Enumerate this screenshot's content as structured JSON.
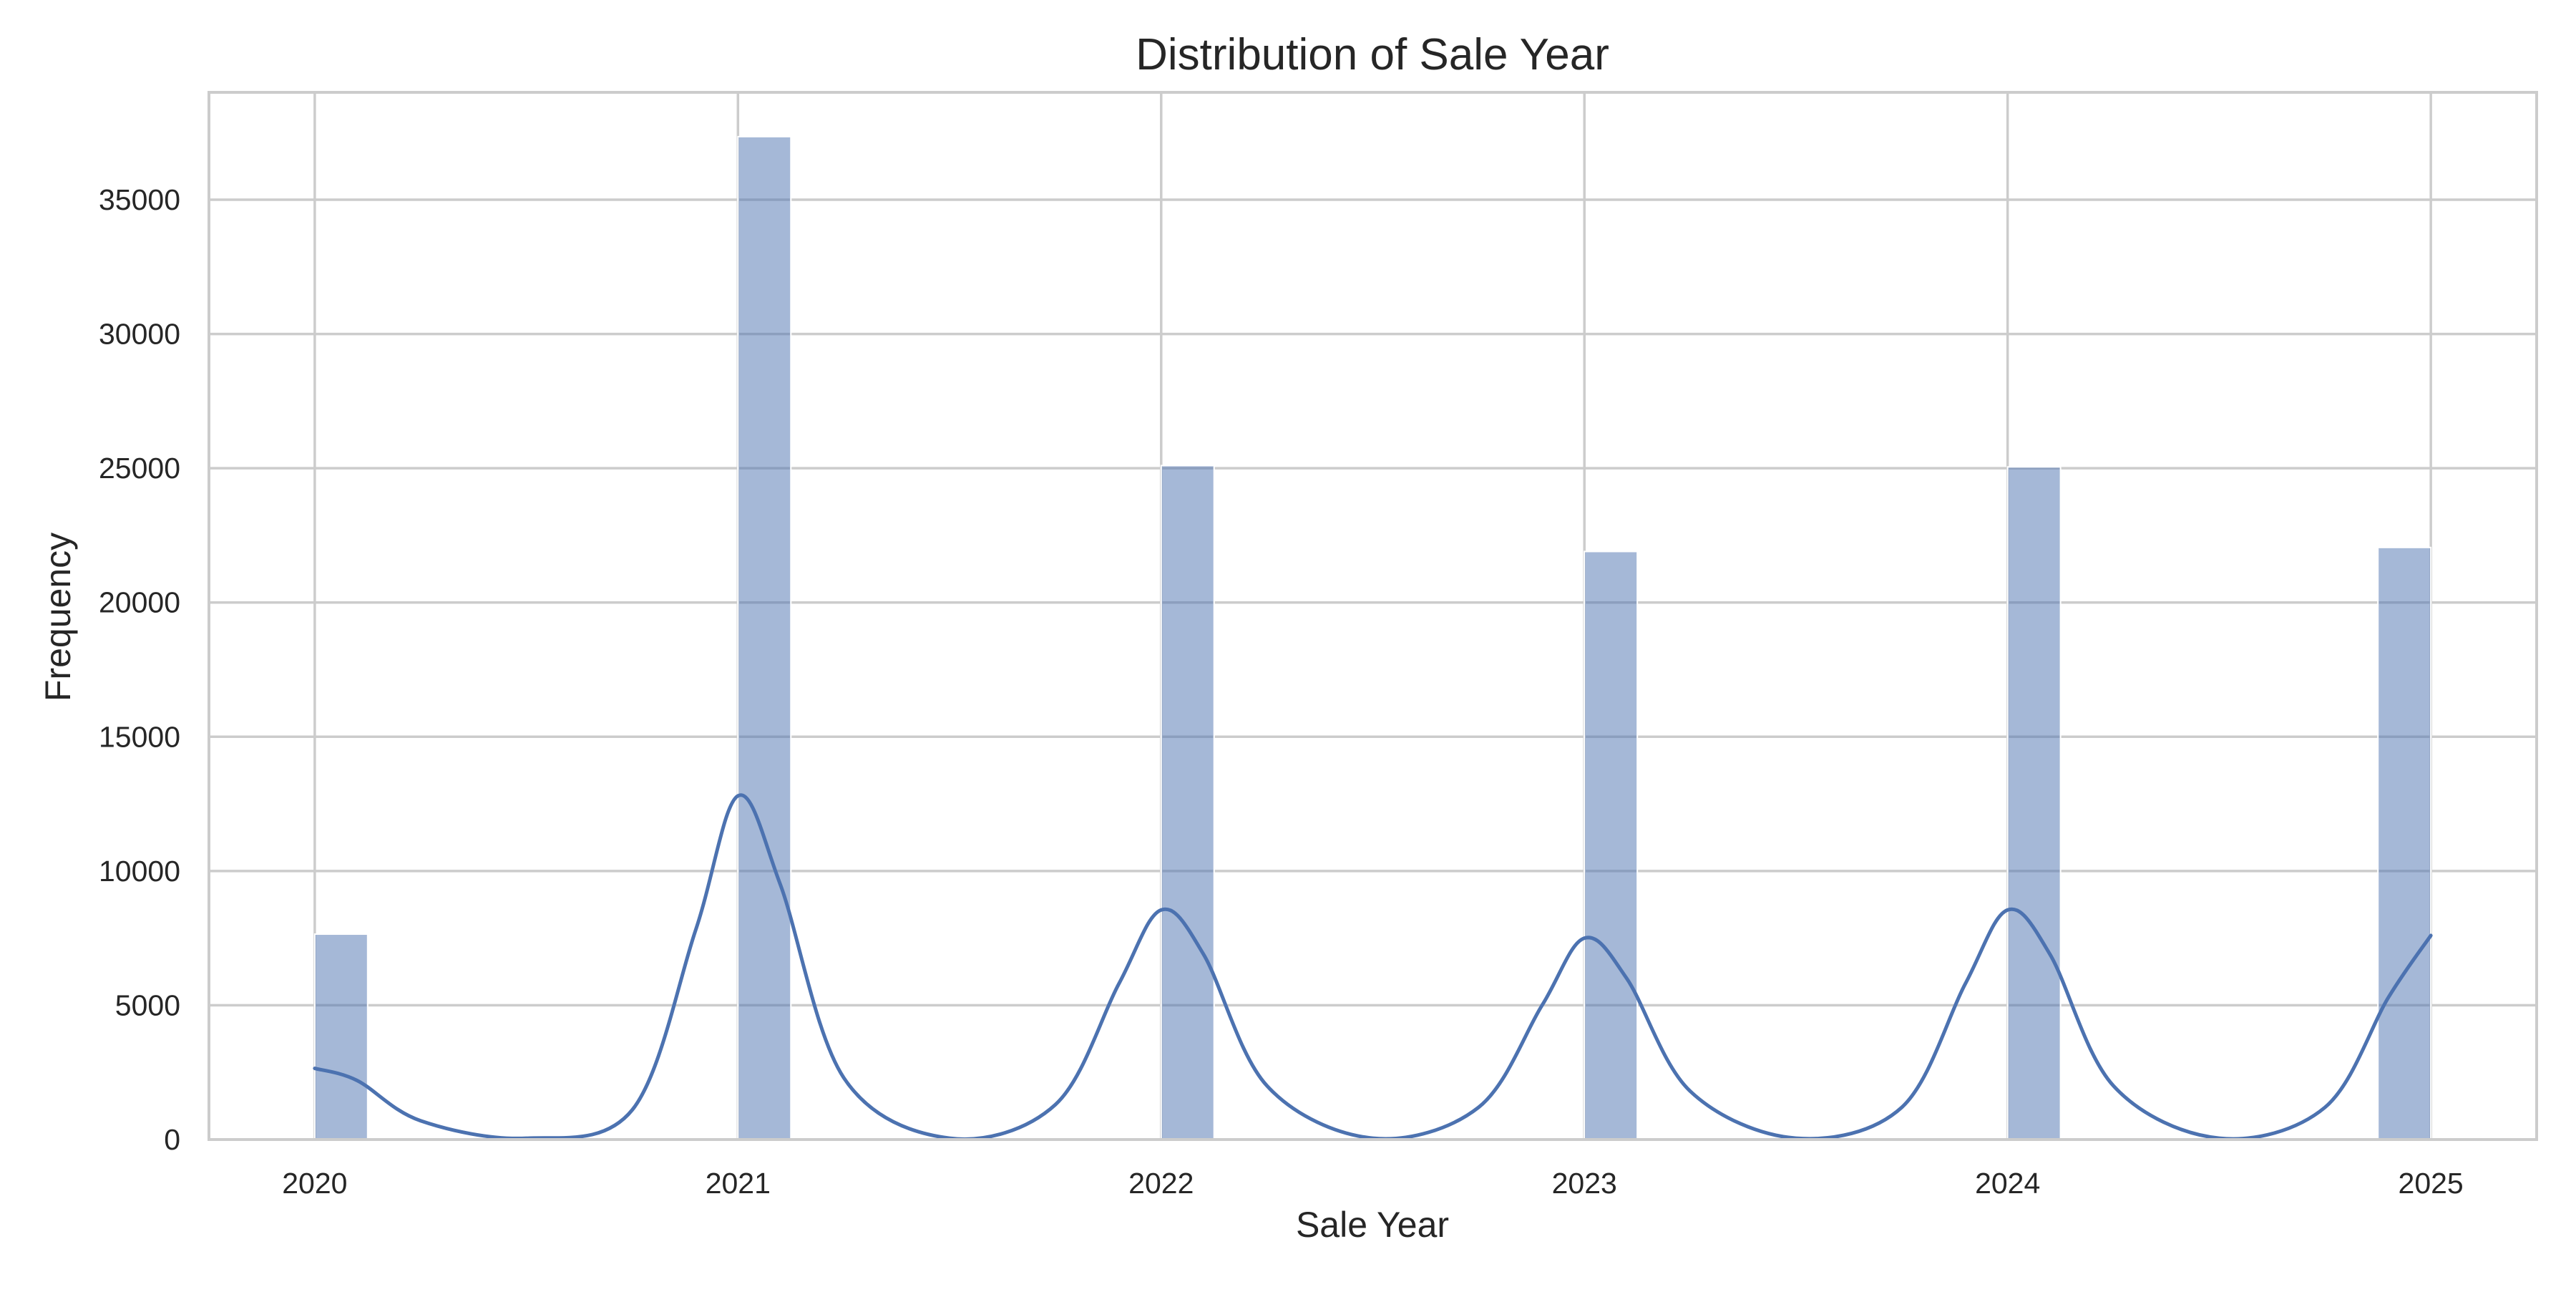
{
  "chart_data": {
    "type": "bar",
    "title": "Distribution of Sale Year",
    "xlabel": "Sale Year",
    "ylabel": "Frequency",
    "xlim": [
      2019.75,
      2025.25
    ],
    "ylim": [
      0,
      39000
    ],
    "x_ticks": [
      "2020",
      "2021",
      "2022",
      "2023",
      "2024",
      "2025"
    ],
    "y_ticks": [
      "0",
      "5000",
      "10000",
      "15000",
      "20000",
      "25000",
      "30000",
      "35000"
    ],
    "grid": true,
    "legend": false,
    "bar_color": "#4c72b0",
    "bar_opacity": 0.5,
    "line_color": "#4c72b0",
    "grid_color": "#cccccc",
    "spine_color": "#cccccc",
    "bins": [
      {
        "left": 2020.0,
        "right": 2020.125,
        "value": 7650
      },
      {
        "left": 2021.0,
        "right": 2021.125,
        "value": 37350
      },
      {
        "left": 2022.0,
        "right": 2022.125,
        "value": 25100
      },
      {
        "left": 2023.0,
        "right": 2023.125,
        "value": 21900
      },
      {
        "left": 2024.0,
        "right": 2024.125,
        "value": 25050
      },
      {
        "left": 2024.875,
        "right": 2025.0,
        "value": 22050
      }
    ],
    "kde": {
      "name": "KDE",
      "x": [
        2020.0,
        2020.1,
        2020.25,
        2020.5,
        2020.75,
        2020.9,
        2021.0,
        2021.1,
        2021.25,
        2021.5,
        2021.75,
        2021.9,
        2022.0,
        2022.1,
        2022.25,
        2022.5,
        2022.75,
        2022.9,
        2023.0,
        2023.1,
        2023.25,
        2023.5,
        2023.75,
        2023.9,
        2024.0,
        2024.1,
        2024.25,
        2024.5,
        2024.75,
        2024.9,
        2025.0
      ],
      "y": [
        2650,
        2200,
        700,
        50,
        1100,
        7800,
        12800,
        9500,
        2300,
        50,
        1300,
        5800,
        8550,
        6900,
        2000,
        50,
        1200,
        5000,
        7500,
        6000,
        1800,
        50,
        1200,
        5800,
        8550,
        6900,
        2000,
        50,
        1200,
        5300,
        7600
      ]
    }
  }
}
